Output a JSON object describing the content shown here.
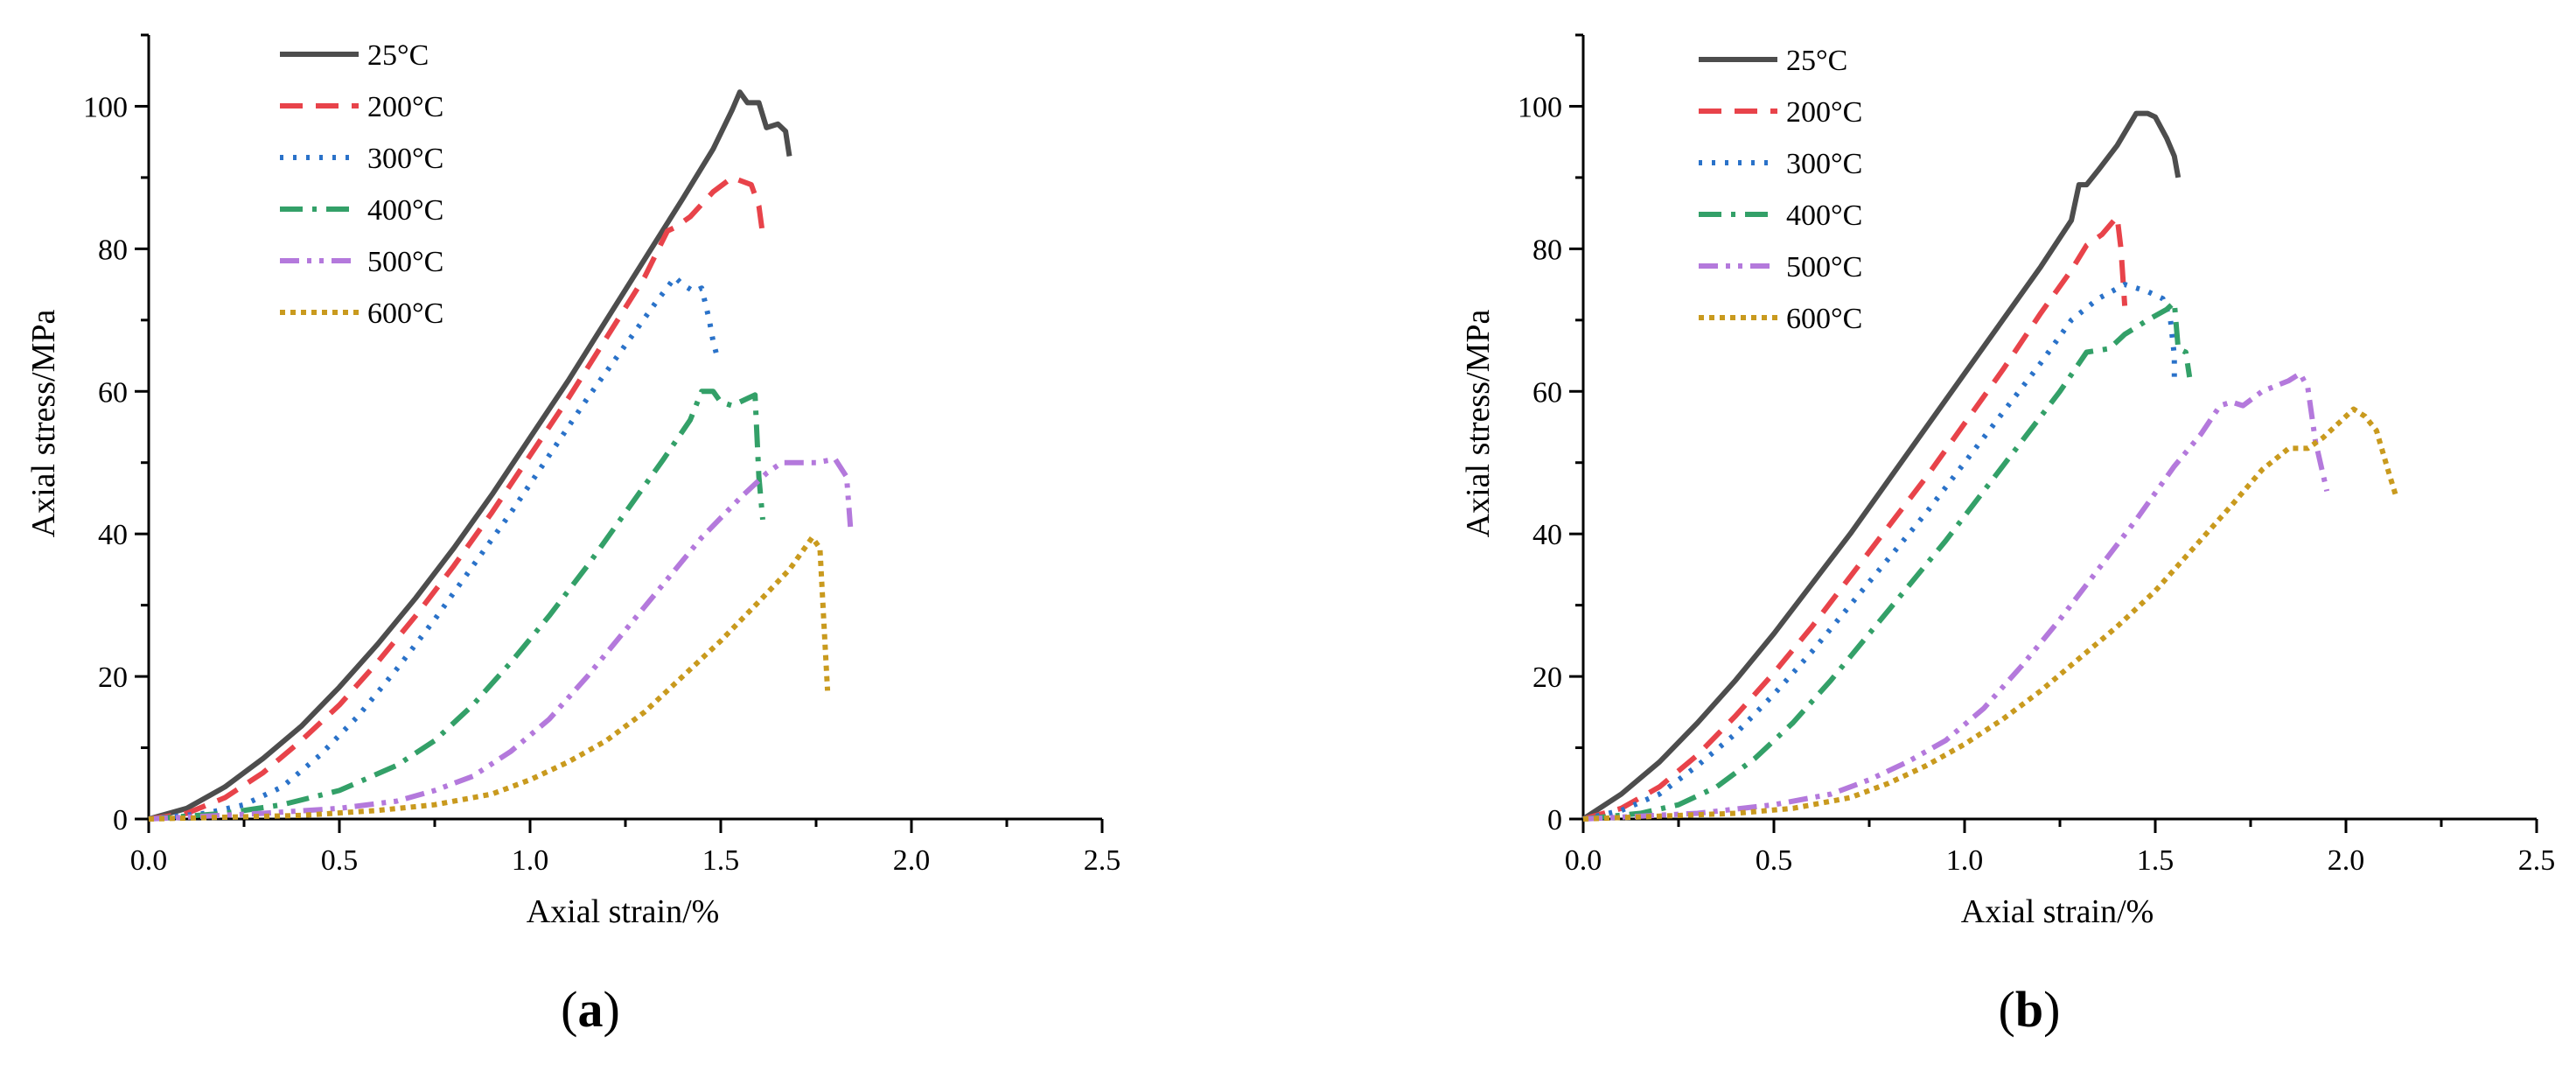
{
  "colors": {
    "25°C": "#4d4d4d",
    "200°C": "#e8434a",
    "300°C": "#2a72c9",
    "400°C": "#33a068",
    "500°C": "#b479dc",
    "600°C": "#c99a1e"
  },
  "chart_data": [
    {
      "type": "line",
      "panel_label": "a",
      "xlabel": "Axial strain/%",
      "ylabel": "Axial stress/MPa",
      "xlim": [
        0,
        2.5
      ],
      "ylim": [
        0,
        110
      ],
      "xticks": [
        "0.0",
        "0.5",
        "1.0",
        "1.5",
        "2.0",
        "2.5"
      ],
      "yticks": [
        "0",
        "20",
        "40",
        "60",
        "80",
        "100"
      ],
      "legend_position": "top-left",
      "series": [
        {
          "name": "25°C",
          "style": "solid",
          "points": [
            [
              0,
              0
            ],
            [
              0.1,
              1.5
            ],
            [
              0.2,
              4.5
            ],
            [
              0.3,
              8.5
            ],
            [
              0.4,
              13
            ],
            [
              0.5,
              18.5
            ],
            [
              0.6,
              24.5
            ],
            [
              0.7,
              31
            ],
            [
              0.8,
              38
            ],
            [
              0.9,
              45.5
            ],
            [
              1.0,
              53.5
            ],
            [
              1.1,
              61.5
            ],
            [
              1.2,
              70
            ],
            [
              1.3,
              78.5
            ],
            [
              1.4,
              87
            ],
            [
              1.48,
              94
            ],
            [
              1.53,
              99.5
            ],
            [
              1.55,
              102
            ],
            [
              1.57,
              100.5
            ],
            [
              1.6,
              100.5
            ],
            [
              1.62,
              97
            ],
            [
              1.65,
              97.5
            ],
            [
              1.67,
              96.5
            ],
            [
              1.68,
              93
            ]
          ]
        },
        {
          "name": "200°C",
          "style": "dash",
          "points": [
            [
              0,
              0
            ],
            [
              0.1,
              0.8
            ],
            [
              0.2,
              3
            ],
            [
              0.3,
              6.5
            ],
            [
              0.4,
              11
            ],
            [
              0.5,
              16
            ],
            [
              0.6,
              22
            ],
            [
              0.7,
              28.5
            ],
            [
              0.8,
              35.5
            ],
            [
              0.9,
              43
            ],
            [
              1.0,
              51
            ],
            [
              1.1,
              59
            ],
            [
              1.2,
              67.5
            ],
            [
              1.3,
              76
            ],
            [
              1.36,
              82.5
            ],
            [
              1.38,
              83
            ],
            [
              1.42,
              84.5
            ],
            [
              1.48,
              88
            ],
            [
              1.53,
              90
            ],
            [
              1.58,
              89
            ],
            [
              1.6,
              86
            ],
            [
              1.61,
              82
            ]
          ]
        },
        {
          "name": "300°C",
          "style": "dot",
          "points": [
            [
              0,
              0
            ],
            [
              0.15,
              0.8
            ],
            [
              0.25,
              2
            ],
            [
              0.35,
              4.5
            ],
            [
              0.45,
              9
            ],
            [
              0.55,
              14.5
            ],
            [
              0.65,
              21
            ],
            [
              0.75,
              28
            ],
            [
              0.85,
              35.5
            ],
            [
              0.95,
              43
            ],
            [
              1.05,
              51
            ],
            [
              1.15,
              59
            ],
            [
              1.25,
              66.5
            ],
            [
              1.33,
              72.5
            ],
            [
              1.38,
              76
            ],
            [
              1.4,
              75
            ],
            [
              1.43,
              74
            ],
            [
              1.45,
              74.5
            ],
            [
              1.47,
              70
            ],
            [
              1.48,
              67
            ],
            [
              1.49,
              65
            ]
          ]
        },
        {
          "name": "400°C",
          "style": "dashdot",
          "points": [
            [
              0,
              0
            ],
            [
              0.2,
              0.8
            ],
            [
              0.35,
              2
            ],
            [
              0.5,
              4
            ],
            [
              0.65,
              7.5
            ],
            [
              0.75,
              11
            ],
            [
              0.85,
              16
            ],
            [
              0.95,
              22
            ],
            [
              1.05,
              28.5
            ],
            [
              1.15,
              35.5
            ],
            [
              1.25,
              43
            ],
            [
              1.35,
              50.5
            ],
            [
              1.42,
              56
            ],
            [
              1.45,
              60
            ],
            [
              1.48,
              60
            ],
            [
              1.5,
              58.5
            ],
            [
              1.53,
              58
            ],
            [
              1.57,
              59
            ],
            [
              1.59,
              59.5
            ],
            [
              1.6,
              48
            ],
            [
              1.61,
              42
            ]
          ]
        },
        {
          "name": "500°C",
          "style": "dashdotdot",
          "points": [
            [
              0,
              0
            ],
            [
              0.3,
              0.8
            ],
            [
              0.5,
              1.5
            ],
            [
              0.65,
              2.5
            ],
            [
              0.75,
              4
            ],
            [
              0.85,
              6
            ],
            [
              0.95,
              9.5
            ],
            [
              1.05,
              14
            ],
            [
              1.15,
              20
            ],
            [
              1.25,
              26.5
            ],
            [
              1.35,
              33
            ],
            [
              1.45,
              39.5
            ],
            [
              1.55,
              45
            ],
            [
              1.62,
              48.5
            ],
            [
              1.66,
              50
            ],
            [
              1.7,
              50
            ],
            [
              1.75,
              50
            ],
            [
              1.8,
              50.5
            ],
            [
              1.83,
              48
            ],
            [
              1.84,
              41
            ]
          ]
        },
        {
          "name": "600°C",
          "style": "densedot",
          "points": [
            [
              0,
              0
            ],
            [
              0.4,
              0.5
            ],
            [
              0.6,
              1.2
            ],
            [
              0.75,
              2
            ],
            [
              0.9,
              3.5
            ],
            [
              1.0,
              5.5
            ],
            [
              1.1,
              8
            ],
            [
              1.2,
              11
            ],
            [
              1.3,
              15
            ],
            [
              1.4,
              20
            ],
            [
              1.5,
              25
            ],
            [
              1.6,
              30.5
            ],
            [
              1.68,
              35
            ],
            [
              1.72,
              38
            ],
            [
              1.74,
              39.5
            ],
            [
              1.76,
              38
            ],
            [
              1.77,
              28
            ],
            [
              1.78,
              18
            ]
          ]
        }
      ]
    },
    {
      "type": "line",
      "panel_label": "b",
      "xlabel": "Axial strain/%",
      "ylabel": "Axial stress/MPa",
      "xlim": [
        0,
        2.5
      ],
      "ylim": [
        0,
        110
      ],
      "xticks": [
        "0.0",
        "0.5",
        "1.0",
        "1.5",
        "2.0",
        "2.5"
      ],
      "yticks": [
        "0",
        "20",
        "40",
        "60",
        "80",
        "100"
      ],
      "legend_position": "top-left",
      "series": [
        {
          "name": "25°C",
          "style": "solid",
          "points": [
            [
              0,
              0
            ],
            [
              0.1,
              3.5
            ],
            [
              0.2,
              8
            ],
            [
              0.3,
              13.5
            ],
            [
              0.4,
              19.5
            ],
            [
              0.5,
              26
            ],
            [
              0.6,
              33
            ],
            [
              0.7,
              40
            ],
            [
              0.8,
              47.5
            ],
            [
              0.9,
              55
            ],
            [
              1.0,
              62.5
            ],
            [
              1.1,
              70
            ],
            [
              1.2,
              77.5
            ],
            [
              1.28,
              84
            ],
            [
              1.3,
              89
            ],
            [
              1.32,
              89
            ],
            [
              1.35,
              91
            ],
            [
              1.4,
              94.5
            ],
            [
              1.45,
              99
            ],
            [
              1.48,
              99
            ],
            [
              1.5,
              98.5
            ],
            [
              1.53,
              95.5
            ],
            [
              1.55,
              93
            ],
            [
              1.56,
              90
            ]
          ]
        },
        {
          "name": "200°C",
          "style": "dash",
          "points": [
            [
              0,
              0
            ],
            [
              0.1,
              1.5
            ],
            [
              0.2,
              4.5
            ],
            [
              0.3,
              9
            ],
            [
              0.4,
              14.5
            ],
            [
              0.5,
              20.5
            ],
            [
              0.6,
              27
            ],
            [
              0.7,
              34
            ],
            [
              0.8,
              41
            ],
            [
              0.9,
              48
            ],
            [
              1.0,
              55.5
            ],
            [
              1.1,
              63
            ],
            [
              1.2,
              71
            ],
            [
              1.28,
              77
            ],
            [
              1.32,
              80.5
            ],
            [
              1.36,
              82
            ],
            [
              1.4,
              84.5
            ],
            [
              1.41,
              80
            ],
            [
              1.42,
              72
            ]
          ]
        },
        {
          "name": "300°C",
          "style": "dot",
          "points": [
            [
              0,
              0
            ],
            [
              0.1,
              1.2
            ],
            [
              0.2,
              3.5
            ],
            [
              0.3,
              7.5
            ],
            [
              0.4,
              12
            ],
            [
              0.5,
              17.5
            ],
            [
              0.6,
              23.5
            ],
            [
              0.7,
              30
            ],
            [
              0.8,
              36.5
            ],
            [
              0.9,
              43
            ],
            [
              1.0,
              50
            ],
            [
              1.1,
              57
            ],
            [
              1.2,
              64
            ],
            [
              1.28,
              70
            ],
            [
              1.35,
              73
            ],
            [
              1.42,
              75
            ],
            [
              1.48,
              74
            ],
            [
              1.52,
              73
            ],
            [
              1.54,
              70
            ],
            [
              1.55,
              65
            ],
            [
              1.55,
              61
            ]
          ]
        },
        {
          "name": "400°C",
          "style": "dashdot",
          "points": [
            [
              0,
              0
            ],
            [
              0.15,
              0.8
            ],
            [
              0.25,
              2
            ],
            [
              0.35,
              4.5
            ],
            [
              0.45,
              8.5
            ],
            [
              0.55,
              13.5
            ],
            [
              0.65,
              19.5
            ],
            [
              0.75,
              26
            ],
            [
              0.85,
              32.5
            ],
            [
              0.95,
              39
            ],
            [
              1.05,
              46
            ],
            [
              1.15,
              53
            ],
            [
              1.25,
              60
            ],
            [
              1.32,
              65.5
            ],
            [
              1.38,
              66
            ],
            [
              1.42,
              68
            ],
            [
              1.48,
              70
            ],
            [
              1.53,
              71.5
            ],
            [
              1.55,
              72.5
            ],
            [
              1.56,
              66
            ],
            [
              1.58,
              65.5
            ],
            [
              1.59,
              62
            ]
          ]
        },
        {
          "name": "500°C",
          "style": "dashdotdot",
          "points": [
            [
              0,
              0
            ],
            [
              0.3,
              0.8
            ],
            [
              0.5,
              2
            ],
            [
              0.65,
              3.5
            ],
            [
              0.75,
              5.5
            ],
            [
              0.85,
              8
            ],
            [
              0.95,
              11
            ],
            [
              1.05,
              15.5
            ],
            [
              1.15,
              21.5
            ],
            [
              1.25,
              28
            ],
            [
              1.35,
              35
            ],
            [
              1.45,
              42
            ],
            [
              1.55,
              49.5
            ],
            [
              1.62,
              54
            ],
            [
              1.67,
              58
            ],
            [
              1.7,
              58.5
            ],
            [
              1.73,
              58
            ],
            [
              1.78,
              60
            ],
            [
              1.85,
              61.5
            ],
            [
              1.88,
              62.5
            ],
            [
              1.9,
              60.5
            ],
            [
              1.92,
              53
            ],
            [
              1.95,
              46
            ]
          ]
        },
        {
          "name": "600°C",
          "style": "densedot",
          "points": [
            [
              0,
              0
            ],
            [
              0.4,
              0.8
            ],
            [
              0.55,
              1.5
            ],
            [
              0.7,
              3
            ],
            [
              0.8,
              5
            ],
            [
              0.9,
              7.5
            ],
            [
              1.0,
              10.5
            ],
            [
              1.1,
              14
            ],
            [
              1.2,
              18
            ],
            [
              1.3,
              22.5
            ],
            [
              1.4,
              27
            ],
            [
              1.5,
              32
            ],
            [
              1.6,
              38
            ],
            [
              1.7,
              44
            ],
            [
              1.78,
              49
            ],
            [
              1.85,
              52
            ],
            [
              1.9,
              52
            ],
            [
              1.94,
              53.5
            ],
            [
              1.98,
              55.5
            ],
            [
              2.02,
              57.5
            ],
            [
              2.05,
              56.5
            ],
            [
              2.08,
              54.5
            ],
            [
              2.11,
              49
            ],
            [
              2.13,
              45.5
            ]
          ]
        }
      ]
    }
  ]
}
